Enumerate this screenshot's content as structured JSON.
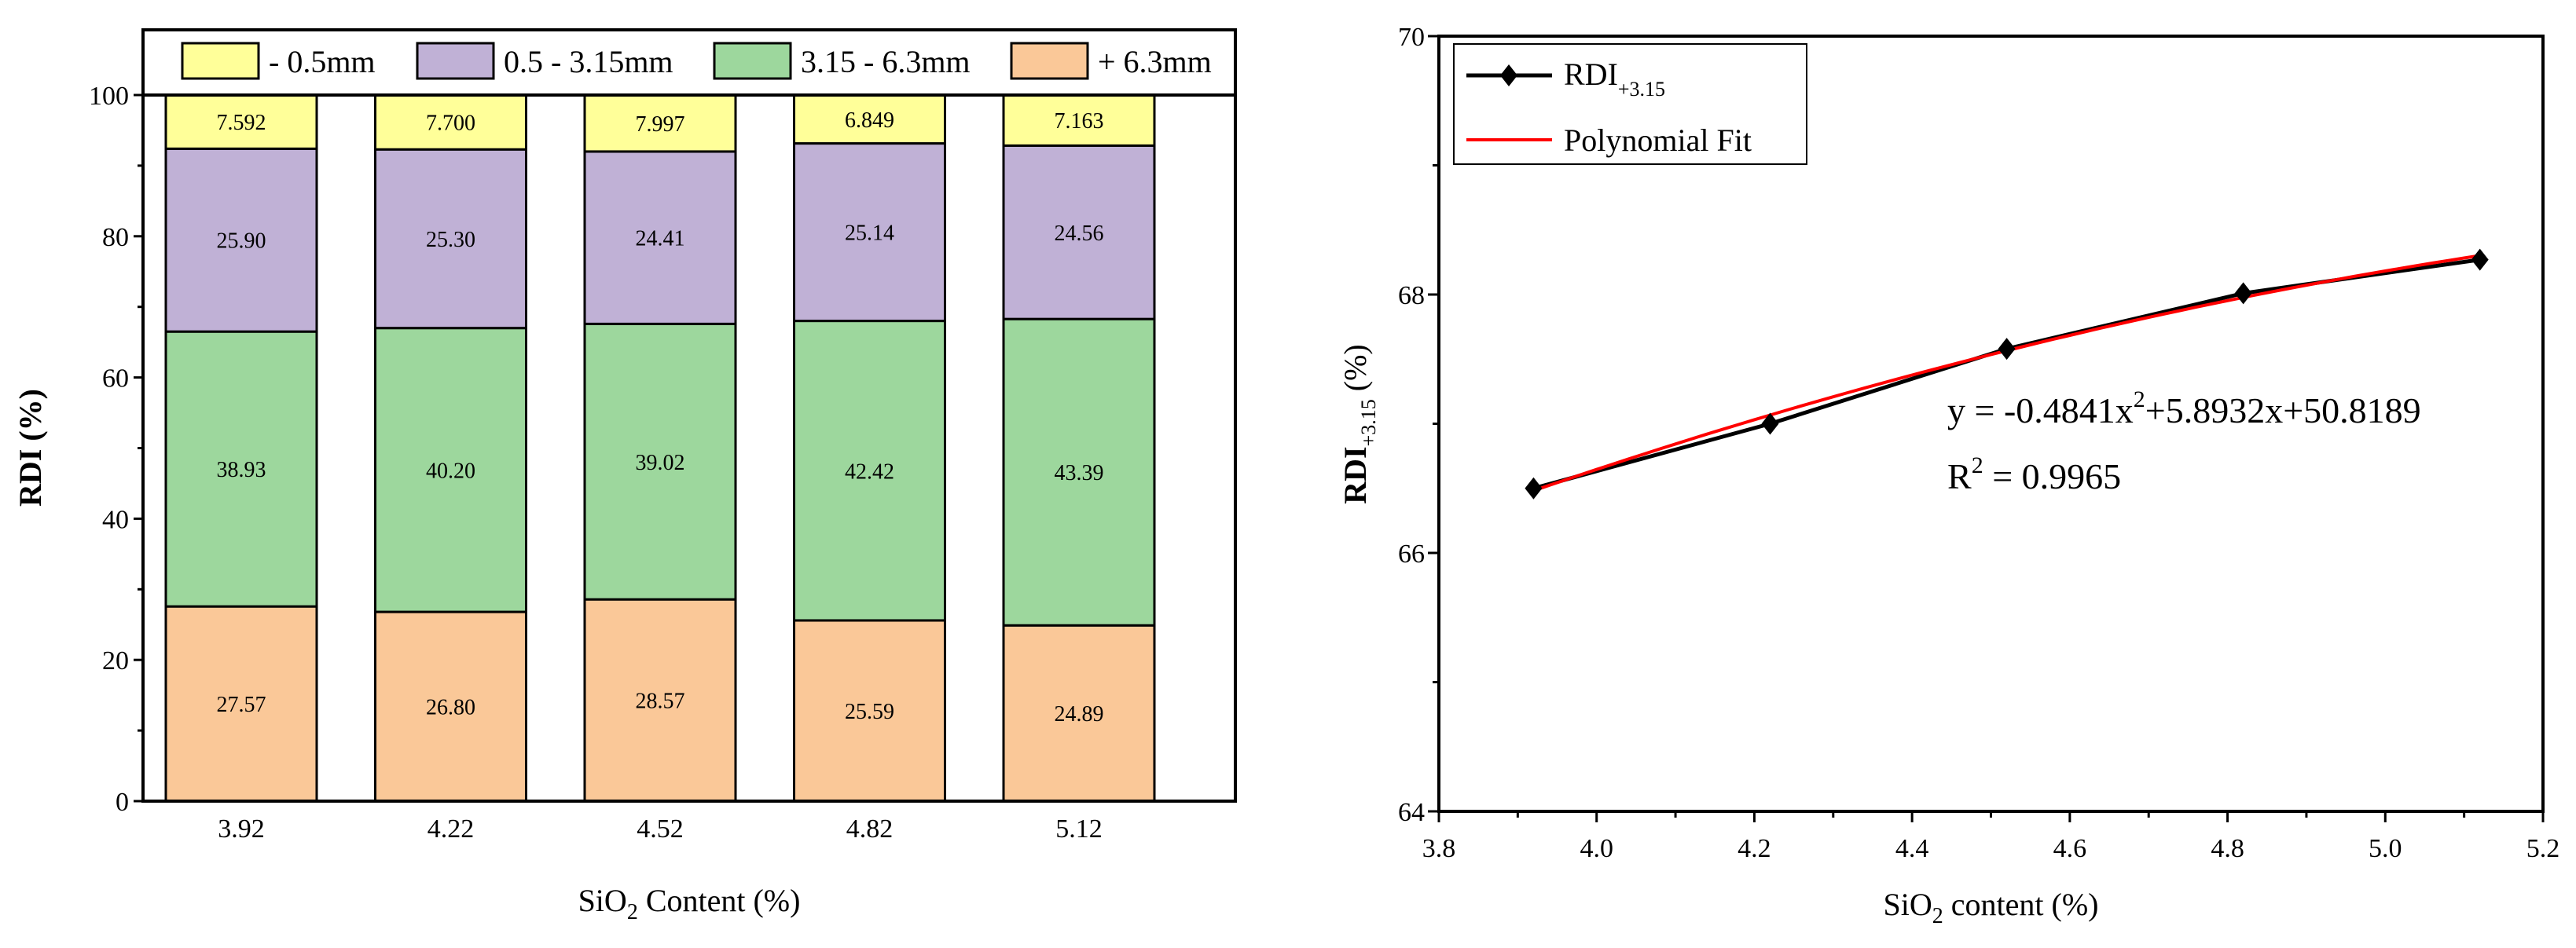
{
  "chart_data": [
    {
      "type": "bar",
      "stacked": true,
      "xlabel_main": "SiO",
      "xlabel_sub": "2",
      "xlabel_rest": " Content (%)",
      "ylabel": "RDI (%)",
      "ylim": [
        0,
        100
      ],
      "yticks": [
        0,
        20,
        40,
        60,
        80,
        100
      ],
      "categories": [
        "3.92",
        "4.22",
        "4.52",
        "4.82",
        "5.12"
      ],
      "legend_position": "top",
      "series": [
        {
          "name": "+ 6.3mm",
          "color": "#FAC898",
          "values": [
            27.57,
            26.8,
            28.57,
            25.59,
            24.89
          ],
          "labels": [
            "27.57",
            "26.80",
            "28.57",
            "25.59",
            "24.89"
          ]
        },
        {
          "name": "3.15 - 6.3mm",
          "color": "#9DD79D",
          "values": [
            38.93,
            40.2,
            39.02,
            42.42,
            43.39
          ],
          "labels": [
            "38.93",
            "40.20",
            "39.02",
            "42.42",
            "43.39"
          ]
        },
        {
          "name": "0.5 - 3.15mm",
          "color": "#C0B1D6",
          "values": [
            25.9,
            25.3,
            24.41,
            25.14,
            24.56
          ],
          "labels": [
            "25.90",
            "25.30",
            "24.41",
            "25.14",
            "24.56"
          ]
        },
        {
          "name": "- 0.5mm",
          "color": "#FFFF99",
          "values": [
            7.592,
            7.7,
            7.997,
            6.849,
            7.163
          ],
          "labels": [
            "7.592",
            "7.700",
            "7.997",
            "6.849",
            "7.163"
          ]
        }
      ],
      "legend_order": [
        3,
        2,
        1,
        0
      ]
    },
    {
      "type": "line",
      "xlabel_main": "SiO",
      "xlabel_sub": "2",
      "xlabel_rest": " content (%)",
      "ylabel_main": "RDI",
      "ylabel_sub": "+3.15",
      "ylabel_rest": " (%)",
      "xlim": [
        3.8,
        5.2
      ],
      "ylim": [
        64,
        70
      ],
      "xticks": [
        "3.8",
        "4.0",
        "4.2",
        "4.4",
        "4.6",
        "4.8",
        "5.0",
        "5.2"
      ],
      "yticks": [
        "64",
        "66",
        "68",
        "70"
      ],
      "legend_position": "top-left",
      "series": [
        {
          "name_main": "RDI",
          "name_sub": "+3.15",
          "color": "#000000",
          "marker": "diamond",
          "x": [
            3.92,
            4.22,
            4.52,
            4.82,
            5.12
          ],
          "y": [
            66.5,
            67.0,
            67.58,
            68.01,
            68.27
          ]
        },
        {
          "name": "Polynomial Fit",
          "color": "#FF0000",
          "coeffs": [
            -0.4841,
            5.8932,
            50.8189
          ]
        }
      ],
      "annotation": {
        "eq_a": "y = -0.4841x",
        "eq_exp": "2",
        "eq_b": "+5.8932x+50.8189",
        "r2_a": "R",
        "r2_exp": "2",
        "r2_b": " = 0.9965"
      }
    }
  ]
}
